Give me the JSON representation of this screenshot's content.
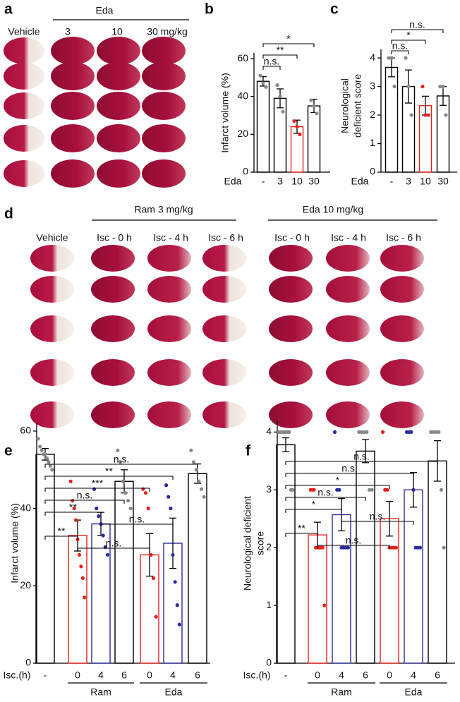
{
  "figure": {
    "a": {
      "letter": "a",
      "group_label": "Eda",
      "columns": [
        "Vehicle",
        "3",
        "10",
        "30 mg/kg"
      ]
    },
    "d": {
      "letter": "d",
      "groups": [
        "Ram 3 mg/kg",
        "Eda 10 mg/kg"
      ],
      "columns": [
        "Vehicle",
        "Isc - 0 h",
        "Isc - 4 h",
        "Isc - 6 h",
        "Isc - 0 h",
        "Isc - 4 h",
        "Isc - 6 h"
      ]
    }
  },
  "chart_data": [
    {
      "type": "bar",
      "panel": "b",
      "y_label": [
        "Infarct volume (%)"
      ],
      "x_label": "Eda",
      "categories": [
        "-",
        "3",
        "10",
        "30"
      ],
      "values": [
        48,
        39,
        24,
        35
      ],
      "errors": [
        2.5,
        5,
        3.5,
        3.5
      ],
      "points": [
        [
          51,
          47,
          45
        ],
        [
          46,
          40,
          32
        ],
        [
          27,
          24,
          20
        ],
        [
          38,
          35,
          31
        ]
      ],
      "colors": [
        "#000000",
        "#000000",
        "#e8201c",
        "#000000"
      ],
      "point_colors": [
        "#888888",
        "#888888",
        "#e8201c",
        "#888888"
      ],
      "ylim": [
        0,
        63
      ],
      "yticks": [
        0,
        20,
        40,
        60
      ],
      "brackets": [
        {
          "label": "*",
          "from": 0,
          "to": 3
        },
        {
          "label": "**",
          "from": 0,
          "to": 2
        },
        {
          "label": "n.s.",
          "from": 0,
          "to": 1
        }
      ]
    },
    {
      "type": "bar",
      "panel": "c",
      "y_label": [
        "Neurological",
        "deficient score"
      ],
      "x_label": "Eda",
      "categories": [
        "-",
        "3",
        "10",
        "30"
      ],
      "values": [
        3.67,
        3.0,
        2.33,
        2.67
      ],
      "errors": [
        0.33,
        0.58,
        0.33,
        0.33
      ],
      "points": [
        [
          4,
          4,
          3
        ],
        [
          4,
          3,
          2
        ],
        [
          3,
          2,
          2
        ],
        [
          3,
          3,
          2
        ]
      ],
      "colors": [
        "#000000",
        "#000000",
        "#e8201c",
        "#000000"
      ],
      "point_colors": [
        "#888888",
        "#888888",
        "#e8201c",
        "#888888"
      ],
      "ylim": [
        0,
        4.3
      ],
      "yticks": [
        0,
        1,
        2,
        3,
        4
      ],
      "brackets": [
        {
          "label": "n.s.",
          "from": 0,
          "to": 3
        },
        {
          "label": "*",
          "from": 0,
          "to": 2
        },
        {
          "label": "n.s.",
          "from": 0,
          "to": 1
        }
      ]
    },
    {
      "type": "bar",
      "panel": "e",
      "y_label": [
        "Infarct volume (%)"
      ],
      "x_label": "Isc.(h)",
      "categories": [
        "-",
        "0",
        "4",
        "6",
        "0",
        "4",
        "6"
      ],
      "values": [
        54,
        33,
        36,
        47,
        28,
        31,
        49
      ],
      "errors": [
        1.5,
        4,
        3,
        3,
        5.5,
        6.5,
        2.5
      ],
      "points": [
        [
          58,
          56,
          55,
          54,
          54,
          53,
          52,
          51,
          50
        ],
        [
          47,
          42,
          40,
          37,
          32,
          28,
          25,
          22,
          17
        ],
        [
          45,
          40,
          38,
          36,
          33,
          30,
          28
        ],
        [
          55,
          52,
          47,
          44,
          42,
          40
        ],
        [
          45,
          44,
          40,
          28,
          22,
          12
        ],
        [
          46,
          43,
          40,
          28,
          21,
          15,
          10
        ],
        [
          55,
          52,
          50,
          47,
          45,
          43
        ]
      ],
      "colors": [
        "#000000",
        "#e8201c",
        "#2a2aa0",
        "#000000",
        "#e8201c",
        "#2a2aa0",
        "#000000"
      ],
      "point_colors": [
        "#888888",
        "#e8201c",
        "#2a2aa0",
        "#888888",
        "#e8201c",
        "#2a2aa0",
        "#888888"
      ],
      "groups": [
        {
          "label": "Ram",
          "categories": [
            1,
            2,
            3
          ]
        },
        {
          "label": "Eda",
          "categories": [
            4,
            5,
            6
          ]
        }
      ],
      "ylim": [
        0,
        62
      ],
      "yticks": [
        0,
        20,
        40,
        60
      ],
      "brackets": [
        {
          "label": "n.s.",
          "from": 0,
          "to": 6
        },
        {
          "label": "**",
          "from": 0,
          "to": 5
        },
        {
          "label": "***",
          "from": 0,
          "to": 4
        },
        {
          "label": "n.s.",
          "from": 0,
          "to": 3
        },
        {
          "label": "**",
          "from": 0,
          "to": 2
        },
        {
          "label": "n.s.",
          "from": 2,
          "to": 5
        },
        {
          "label": "**",
          "from": 0,
          "to": 1
        },
        {
          "label": "n.s.",
          "from": 1,
          "to": 4
        }
      ]
    },
    {
      "type": "bar",
      "panel": "f",
      "y_label": [
        "Neurological deficient",
        "score"
      ],
      "x_label": "Isc.(h)",
      "categories": [
        "-",
        "0",
        "4",
        "6",
        "0",
        "4",
        "6"
      ],
      "values": [
        3.78,
        2.22,
        2.57,
        3.67,
        2.5,
        3.0,
        3.5
      ],
      "errors": [
        0.12,
        0.22,
        0.28,
        0.2,
        0.3,
        0.3,
        0.35
      ],
      "points": [
        [
          4,
          4,
          4,
          4,
          4,
          4,
          4,
          3,
          3
        ],
        [
          3,
          3,
          3,
          2,
          2,
          2,
          2,
          2,
          1
        ],
        [
          4,
          3,
          3,
          2,
          2,
          2,
          2
        ],
        [
          4,
          4,
          4,
          4,
          3,
          3
        ],
        [
          4,
          3,
          3,
          2,
          2,
          2,
          2
        ],
        [
          4,
          4,
          4,
          3,
          2,
          2,
          2
        ],
        [
          4,
          4,
          4,
          4,
          3,
          2
        ]
      ],
      "colors": [
        "#000000",
        "#e8201c",
        "#2a2aa0",
        "#000000",
        "#e8201c",
        "#2a2aa0",
        "#000000"
      ],
      "point_colors": [
        "#888888",
        "#e8201c",
        "#2a2aa0",
        "#888888",
        "#e8201c",
        "#2a2aa0",
        "#888888"
      ],
      "groups": [
        {
          "label": "Ram",
          "categories": [
            1,
            2,
            3
          ]
        },
        {
          "label": "Eda",
          "categories": [
            4,
            5,
            6
          ]
        }
      ],
      "ylim": [
        0,
        4.2
      ],
      "yticks": [
        0,
        1,
        2,
        3,
        4
      ],
      "brackets": [
        {
          "label": "n.s.",
          "from": 0,
          "to": 6
        },
        {
          "label": "n.s.",
          "from": 0,
          "to": 5
        },
        {
          "label": "*",
          "from": 0,
          "to": 4
        },
        {
          "label": "n.s.",
          "from": 0,
          "to": 3
        },
        {
          "label": "*",
          "from": 0,
          "to": 2
        },
        {
          "label": "n.s.",
          "from": 2,
          "to": 5
        },
        {
          "label": "**",
          "from": 0,
          "to": 1
        },
        {
          "label": "n.s.",
          "from": 1,
          "to": 4
        }
      ]
    }
  ]
}
